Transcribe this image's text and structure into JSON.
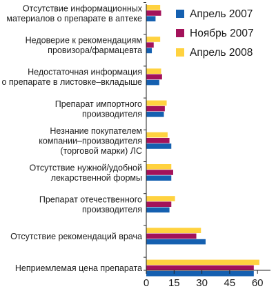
{
  "chart_data": {
    "type": "bar",
    "orientation": "horizontal",
    "categories": [
      [
        "Отсутствие информационных",
        "материалов о препарате в аптеке"
      ],
      [
        "Недоверие к рекомендациям",
        "провизора/фармацевта"
      ],
      [
        "Недостаточная информация",
        "о препарате в листовке–вкладыше"
      ],
      [
        "Препарат импортного",
        "производителя"
      ],
      [
        "Незнание покупателем",
        "компании–производителя",
        "(торговой марки) ЛС"
      ],
      [
        "Отсутствие нужной/удобной",
        "лекарственной формы"
      ],
      [
        "Препарат отечественного",
        "производителя"
      ],
      [
        "Отсутствие рекомендаций врача"
      ],
      [
        "Неприемлемая цена препарата"
      ]
    ],
    "series": [
      {
        "name": "Апрель 2007",
        "color": "#1560b0",
        "values": [
          5,
          3,
          7,
          9.5,
          13.5,
          13.5,
          12.5,
          32,
          58
        ]
      },
      {
        "name": "Ноябрь 2007",
        "color": "#a3125a",
        "values": [
          8,
          4,
          8.5,
          10,
          12.5,
          14.5,
          13.5,
          27,
          58
        ]
      },
      {
        "name": "Апрель 2008",
        "color": "#ffd23f",
        "values": [
          7.5,
          7.5,
          8,
          11,
          11.5,
          13.5,
          15.5,
          29.5,
          61
        ]
      }
    ],
    "xaxis": {
      "ticks": [
        "0",
        "15",
        "30",
        "45",
        "60"
      ],
      "xlim": [
        0,
        67
      ]
    },
    "legend_position": "top-right",
    "grid": false
  }
}
